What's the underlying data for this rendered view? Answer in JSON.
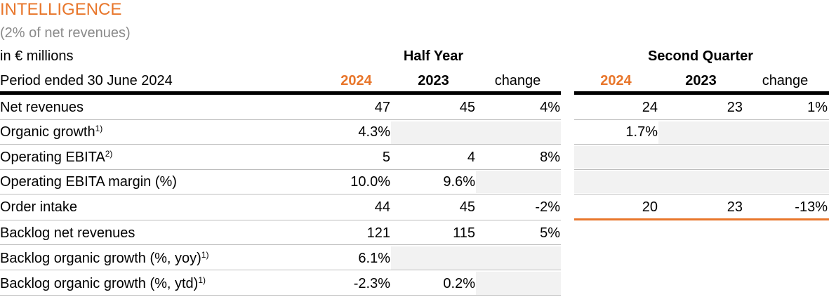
{
  "section": {
    "title": "INTELLIGENCE",
    "subtitle": "(2% of net revenues)"
  },
  "table": {
    "unit_label": "in € millions",
    "period_label": "Period ended 30 June 2024",
    "half_year_heading": "Half Year",
    "second_quarter_heading": "Second Quarter",
    "col_2024": "2024",
    "col_2023": "2023",
    "col_change": "change",
    "accent_color": "#e8762b",
    "rows": [
      {
        "label": "Net revenues",
        "sup": "",
        "hy_2024": "47",
        "hy_2023": "45",
        "hy_change": "4%",
        "q_2024": "24",
        "q_2023": "23",
        "q_change": "1%"
      },
      {
        "label": "Organic growth",
        "sup": "1)",
        "hy_2024": "4.3%",
        "hy_2023": "",
        "hy_change": "",
        "q_2024": "1.7%",
        "q_2023": "",
        "q_change": ""
      },
      {
        "label": "Operating EBITA",
        "sup": "2)",
        "hy_2024": "5",
        "hy_2023": "4",
        "hy_change": "8%",
        "q_2024": "",
        "q_2023": "",
        "q_change": ""
      },
      {
        "label": "Operating EBITA margin (%)",
        "sup": "",
        "hy_2024": "10.0%",
        "hy_2023": "9.6%",
        "hy_change": "",
        "q_2024": "",
        "q_2023": "",
        "q_change": ""
      },
      {
        "label": "Order intake",
        "sup": "",
        "hy_2024": "44",
        "hy_2023": "45",
        "hy_change": "-2%",
        "q_2024": "20",
        "q_2023": "23",
        "q_change": "-13%"
      },
      {
        "label": "Backlog net revenues",
        "sup": "",
        "hy_2024": "121",
        "hy_2023": "115",
        "hy_change": "5%"
      },
      {
        "label": "Backlog organic growth (%, yoy)",
        "sup": "1)",
        "hy_2024": "6.1%",
        "hy_2023": "",
        "hy_change": ""
      },
      {
        "label": "Backlog organic growth (%, ytd)",
        "sup": "1)",
        "hy_2024": "-2.3%",
        "hy_2023": "0.2%",
        "hy_change": ""
      }
    ]
  }
}
